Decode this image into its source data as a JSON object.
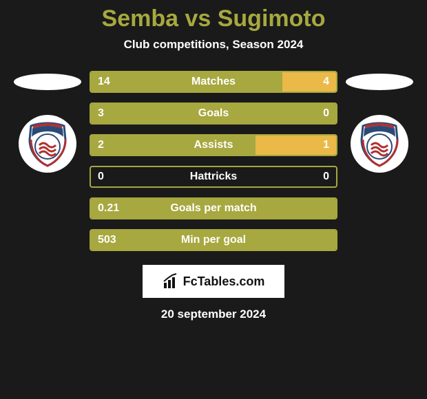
{
  "colors": {
    "title": "#a7a83f",
    "bar_left": "#a7a83f",
    "bar_right": "#eab948",
    "bar_border": "#a7a83f",
    "background": "#1a1a1a"
  },
  "header": {
    "title": "Semba vs Sugimoto",
    "subtitle": "Club competitions, Season 2024"
  },
  "bars": [
    {
      "label": "Matches",
      "left_val": "14",
      "right_val": "4",
      "left_share": 0.78,
      "right_share": 0.22
    },
    {
      "label": "Goals",
      "left_val": "3",
      "right_val": "0",
      "left_share": 1.0,
      "right_share": 0.0
    },
    {
      "label": "Assists",
      "left_val": "2",
      "right_val": "1",
      "left_share": 0.67,
      "right_share": 0.33
    },
    {
      "label": "Hattricks",
      "left_val": "0",
      "right_val": "0",
      "left_share": 0.0,
      "right_share": 0.0
    },
    {
      "label": "Goals per match",
      "left_val": "0.21",
      "right_val": "",
      "left_share": 1.0,
      "right_share": 0.0
    },
    {
      "label": "Min per goal",
      "left_val": "503",
      "right_val": "",
      "left_share": 1.0,
      "right_share": 0.0
    }
  ],
  "brand": {
    "text": "FcTables.com"
  },
  "date": "20 september 2024"
}
